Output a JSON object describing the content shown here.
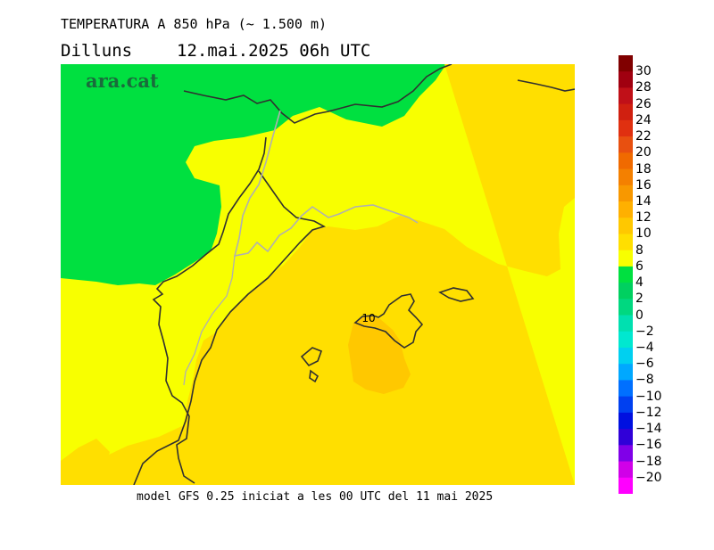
{
  "header": {
    "title": "TEMPERATURA A 850 hPa (~ 1.500 m)",
    "day": "Dilluns",
    "datetime": "12.mai.2025 06h UTC"
  },
  "map": {
    "logo": "ara.cat",
    "contour_label": "10",
    "colors": {
      "t4_6": "#00e040",
      "t6_8": "#f8ff00",
      "t8_10": "#ffdf00",
      "t10_12": "#ffc800",
      "coast": "#303030",
      "border": "#b0b0b0",
      "logo": "#1a6b3c"
    }
  },
  "footer": {
    "text": "model GFS 0.25 iniciat a les 00 UTC del 11 mai 2025"
  },
  "scale": {
    "labels": [
      "30",
      "28",
      "26",
      "24",
      "22",
      "20",
      "18",
      "16",
      "14",
      "12",
      "10",
      "8",
      "6",
      "4",
      "2",
      "0",
      "−2",
      "−4",
      "−6",
      "−8",
      "−10",
      "−12",
      "−14",
      "−16",
      "−18",
      "−20"
    ],
    "colors": [
      "#800000",
      "#a00010",
      "#c01018",
      "#d02010",
      "#e03010",
      "#e85010",
      "#f06a00",
      "#f48000",
      "#f89800",
      "#ffb000",
      "#ffc800",
      "#ffdf00",
      "#f8ff00",
      "#00e040",
      "#00d060",
      "#00d880",
      "#00e0b0",
      "#00e8d0",
      "#00d0f0",
      "#00a8ff",
      "#0070ff",
      "#0040f0",
      "#0010e0",
      "#3000d8",
      "#8000e8",
      "#d000e8",
      "#ff00ff"
    ]
  }
}
